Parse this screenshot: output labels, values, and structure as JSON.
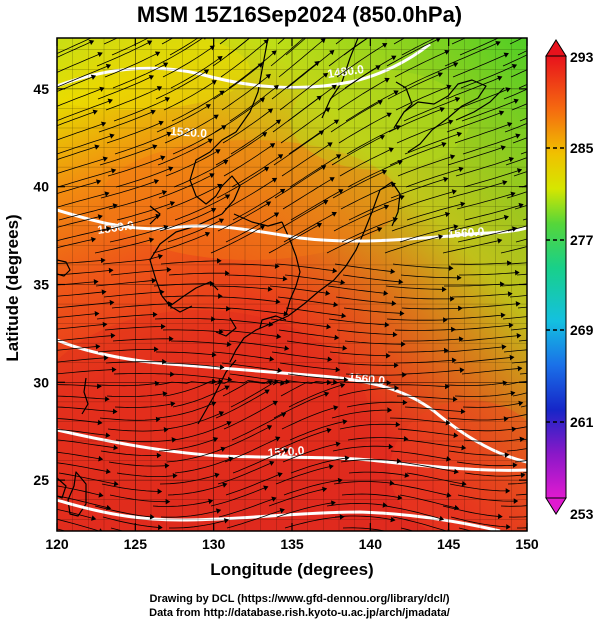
{
  "title": "MSM 15Z16Sep2024 (850.0hPa)",
  "footer": {
    "line1": "Drawing by DCL (https://www.gfd-dennou.org/library/dcl/)",
    "line2": "Data from http://database.rish.kyoto-u.ac.jp/arch/jmadata/"
  },
  "map": {
    "xlabel": "Longitude (degrees)",
    "ylabel": "Latitude  (degrees)",
    "xlim": [
      120,
      150
    ],
    "ylim": [
      22.4,
      47.6
    ],
    "xticks": [
      "120",
      "125",
      "130",
      "135",
      "140",
      "145",
      "150"
    ],
    "yticks": [
      "25",
      "30",
      "35",
      "40",
      "45"
    ],
    "contour_labels": [
      "1480.0",
      "1520.0",
      "1560.0",
      "1560.0",
      "1560.0",
      "1520.0"
    ]
  },
  "colorbar": {
    "ticks": [
      "293",
      "285",
      "277",
      "269",
      "261",
      "253"
    ]
  },
  "colors": {
    "warm": "#e8331c",
    "mid": "#f07a10",
    "yellow": "#e2d200",
    "green": "#5bd223",
    "contour": "#ffffff"
  }
}
